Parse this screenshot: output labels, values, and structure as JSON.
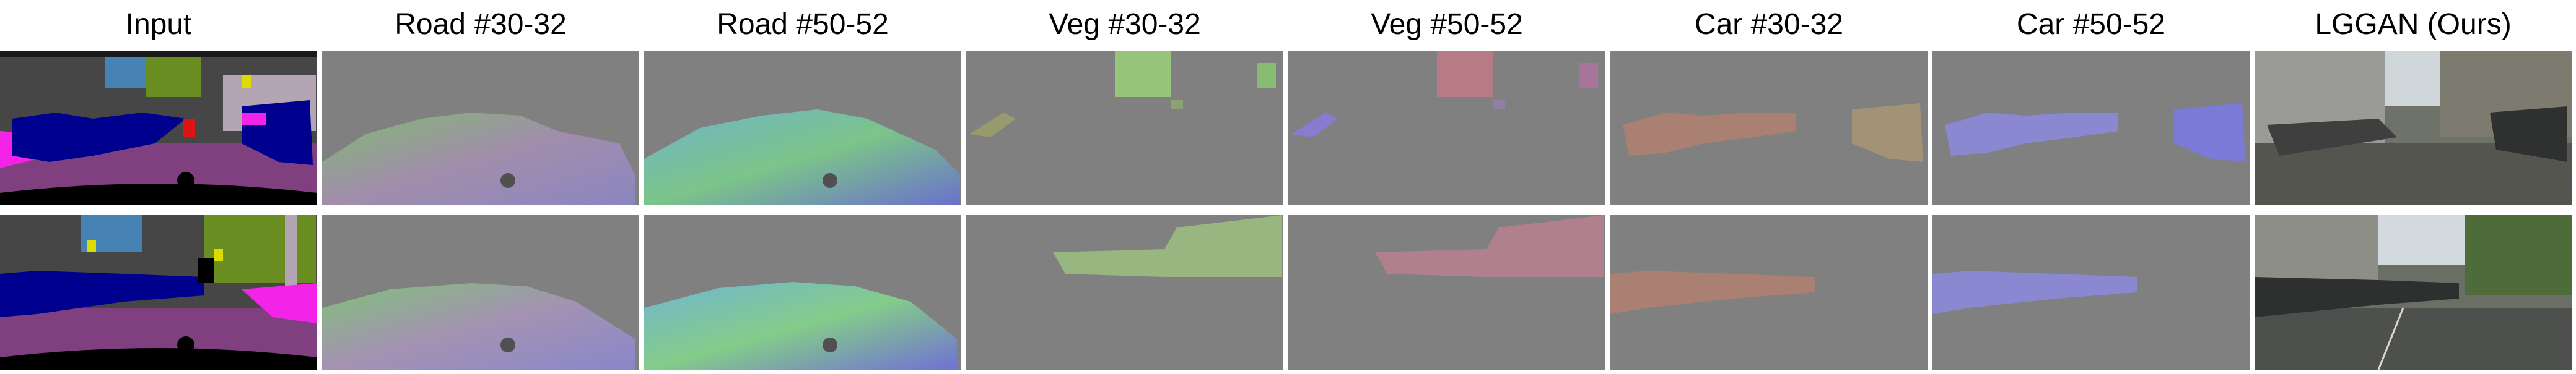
{
  "headers": [
    "Input",
    "Road #30-32",
    "Road #50-52",
    "Veg #30-32",
    "Veg #50-52",
    "Car #30-32",
    "Car #50-52",
    "LGGAN (Ours)"
  ],
  "colors": {
    "feature_bg": "#808080",
    "road": "#804080",
    "car": "#00008e",
    "sidewalk": "#f423e8",
    "vegetation": "#6b8e23",
    "building": "#464646",
    "sky": "#4682b4",
    "ego": "#000000"
  }
}
